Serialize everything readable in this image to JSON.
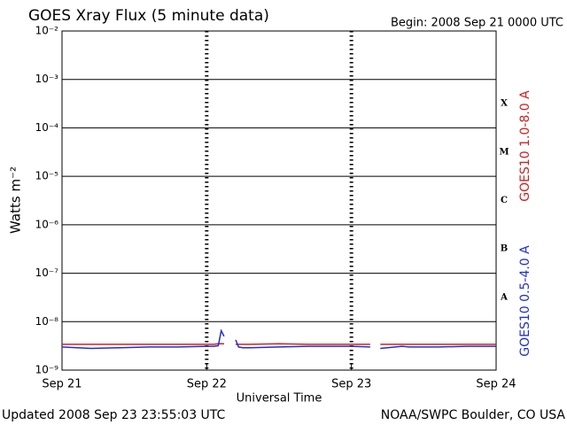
{
  "chart_data": {
    "type": "line",
    "title": "GOES Xray Flux (5 minute data)",
    "subtitle": "Begin:  2008 Sep 21 0000 UTC",
    "ylabel": "Watts m⁻²",
    "xlabel": "Universal Time",
    "footer_left": "Updated 2008 Sep 23 23:55:03 UTC",
    "footer_right": "NOAA/SWPC Boulder, CO USA",
    "log_y": true,
    "grid": true,
    "ylim": [
      1e-09,
      0.01
    ],
    "yticks": [
      {
        "value": 1e-09,
        "label": "10⁻⁹"
      },
      {
        "value": 1e-08,
        "label": "10⁻⁸"
      },
      {
        "value": 1e-07,
        "label": "10⁻⁷"
      },
      {
        "value": 1e-06,
        "label": "10⁻⁶"
      },
      {
        "value": 1e-05,
        "label": "10⁻⁵"
      },
      {
        "value": 0.0001,
        "label": "10⁻⁴"
      },
      {
        "value": 0.001,
        "label": "10⁻³"
      },
      {
        "value": 0.01,
        "label": "10⁻²"
      }
    ],
    "xlim": [
      0,
      3
    ],
    "xticks": [
      {
        "value": 0,
        "label": "Sep 21"
      },
      {
        "value": 1,
        "label": "Sep 22"
      },
      {
        "value": 2,
        "label": "Sep 23"
      },
      {
        "value": 3,
        "label": "Sep 24"
      }
    ],
    "flare_classes": [
      {
        "value": 1e-08,
        "label": "A"
      },
      {
        "value": 1e-07,
        "label": "B"
      },
      {
        "value": 1e-06,
        "label": "C"
      },
      {
        "value": 1e-05,
        "label": "M"
      },
      {
        "value": 0.0001,
        "label": "X"
      }
    ],
    "x": [
      0.0,
      0.2,
      0.4,
      0.6,
      0.8,
      1.0,
      1.05,
      1.08,
      1.1,
      1.12,
      1.15,
      1.2,
      1.22,
      1.25,
      1.3,
      1.5,
      1.7,
      1.9,
      2.0,
      2.13,
      2.15,
      2.2,
      2.35,
      2.4,
      2.6,
      2.8,
      3.0
    ],
    "series": [
      {
        "name": "GOES10 1.0-8.0 A",
        "color": "#d02020",
        "values": [
          3.4e-09,
          3.4e-09,
          3.4e-09,
          3.4e-09,
          3.4e-09,
          3.4e-09,
          3.4e-09,
          3.5e-09,
          3.5e-09,
          3.5e-09,
          null,
          3.4e-09,
          3.4e-09,
          3.4e-09,
          3.4e-09,
          3.5e-09,
          3.4e-09,
          3.4e-09,
          3.4e-09,
          3.4e-09,
          null,
          3.4e-09,
          3.4e-09,
          3.4e-09,
          3.4e-09,
          3.4e-09,
          3.4e-09
        ]
      },
      {
        "name": "GOES10 0.5-4.0 A",
        "color": "#2030d0",
        "values": [
          3e-09,
          2.8e-09,
          2.9e-09,
          3e-09,
          3e-09,
          3.1e-09,
          3.1e-09,
          3.2e-09,
          6.5e-09,
          5e-09,
          null,
          4.2e-09,
          3e-09,
          2.9e-09,
          2.9e-09,
          3e-09,
          3.1e-09,
          3.1e-09,
          3.1e-09,
          3e-09,
          null,
          2.8e-09,
          3.1e-09,
          3e-09,
          3e-09,
          3.1e-09,
          3.1e-09
        ]
      }
    ]
  }
}
